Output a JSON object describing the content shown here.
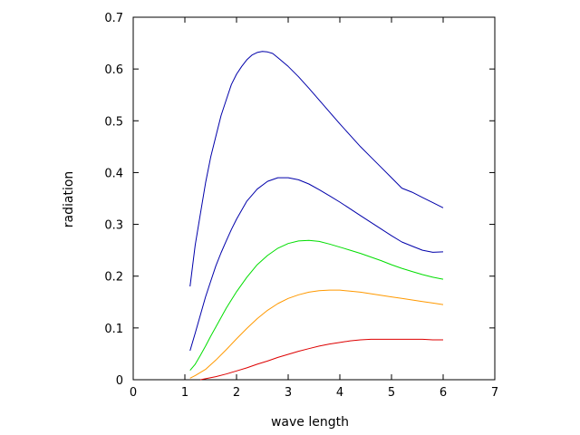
{
  "chart_data": {
    "type": "line",
    "title": "",
    "xlabel": "wave length",
    "ylabel": "radiation",
    "xlim": [
      0,
      7
    ],
    "ylim": [
      0,
      0.7
    ],
    "x_ticks": [
      0,
      1,
      2,
      3,
      4,
      5,
      6,
      7
    ],
    "y_ticks": [
      0,
      0.1,
      0.2,
      0.3,
      0.4,
      0.5,
      0.6,
      0.7
    ],
    "grid": false,
    "legend": false,
    "series": [
      {
        "color": "#0000aa",
        "x": [
          1.1,
          1.2,
          1.3,
          1.4,
          1.5,
          1.6,
          1.7,
          1.8,
          1.9,
          2.0,
          2.1,
          2.2,
          2.3,
          2.4,
          2.5,
          2.6,
          2.7,
          2.8,
          3.0,
          3.2,
          3.4,
          3.6,
          3.8,
          4.0,
          4.2,
          4.4,
          4.6,
          4.8,
          5.0,
          5.2,
          5.4,
          5.6,
          5.8,
          6.0
        ],
        "y": [
          0.18,
          0.26,
          0.32,
          0.38,
          0.43,
          0.47,
          0.51,
          0.54,
          0.57,
          0.59,
          0.605,
          0.618,
          0.627,
          0.632,
          0.634,
          0.633,
          0.63,
          0.622,
          0.605,
          0.585,
          0.563,
          0.54,
          0.517,
          0.494,
          0.472,
          0.45,
          0.43,
          0.41,
          0.39,
          0.37,
          0.362,
          0.352,
          0.342,
          0.332
        ]
      },
      {
        "color": "#0000aa",
        "x": [
          1.1,
          1.2,
          1.3,
          1.4,
          1.5,
          1.6,
          1.7,
          1.8,
          1.9,
          2.0,
          2.2,
          2.4,
          2.6,
          2.8,
          3.0,
          3.2,
          3.4,
          3.6,
          3.8,
          4.0,
          4.2,
          4.4,
          4.6,
          4.8,
          5.0,
          5.2,
          5.4,
          5.6,
          5.8,
          6.0
        ],
        "y": [
          0.056,
          0.09,
          0.125,
          0.16,
          0.19,
          0.22,
          0.245,
          0.268,
          0.29,
          0.31,
          0.345,
          0.368,
          0.383,
          0.39,
          0.39,
          0.386,
          0.378,
          0.367,
          0.355,
          0.343,
          0.33,
          0.317,
          0.304,
          0.291,
          0.278,
          0.266,
          0.258,
          0.25,
          0.246,
          0.247
        ]
      },
      {
        "color": "#00dd00",
        "x": [
          1.1,
          1.2,
          1.3,
          1.4,
          1.5,
          1.6,
          1.8,
          2.0,
          2.2,
          2.4,
          2.6,
          2.8,
          3.0,
          3.2,
          3.4,
          3.6,
          3.8,
          4.0,
          4.2,
          4.4,
          4.6,
          4.8,
          5.0,
          5.2,
          5.4,
          5.6,
          5.8,
          6.0
        ],
        "y": [
          0.018,
          0.03,
          0.047,
          0.065,
          0.084,
          0.102,
          0.138,
          0.17,
          0.198,
          0.222,
          0.24,
          0.254,
          0.263,
          0.268,
          0.269,
          0.267,
          0.262,
          0.256,
          0.25,
          0.244,
          0.237,
          0.23,
          0.222,
          0.215,
          0.209,
          0.203,
          0.198,
          0.194
        ]
      },
      {
        "color": "#ff9900",
        "x": [
          1.1,
          1.2,
          1.4,
          1.6,
          1.8,
          2.0,
          2.2,
          2.4,
          2.6,
          2.8,
          3.0,
          3.2,
          3.4,
          3.6,
          3.8,
          4.0,
          4.2,
          4.4,
          4.6,
          4.8,
          5.0,
          5.2,
          5.4,
          5.6,
          5.8,
          6.0
        ],
        "y": [
          0.003,
          0.008,
          0.02,
          0.038,
          0.058,
          0.079,
          0.099,
          0.118,
          0.134,
          0.147,
          0.157,
          0.164,
          0.169,
          0.172,
          0.173,
          0.173,
          0.171,
          0.169,
          0.166,
          0.163,
          0.16,
          0.157,
          0.154,
          0.151,
          0.148,
          0.145
        ]
      },
      {
        "color": "#dd0000",
        "x": [
          1.3,
          1.4,
          1.6,
          1.8,
          2.0,
          2.2,
          2.4,
          2.6,
          2.8,
          3.0,
          3.2,
          3.4,
          3.6,
          3.8,
          4.0,
          4.2,
          4.4,
          4.6,
          4.8,
          5.0,
          5.2,
          5.4,
          5.6,
          5.8,
          6.0
        ],
        "y": [
          0.0,
          0.002,
          0.006,
          0.011,
          0.017,
          0.023,
          0.03,
          0.036,
          0.043,
          0.049,
          0.055,
          0.06,
          0.065,
          0.069,
          0.072,
          0.075,
          0.077,
          0.078,
          0.078,
          0.078,
          0.078,
          0.078,
          0.078,
          0.077,
          0.077
        ]
      }
    ]
  }
}
